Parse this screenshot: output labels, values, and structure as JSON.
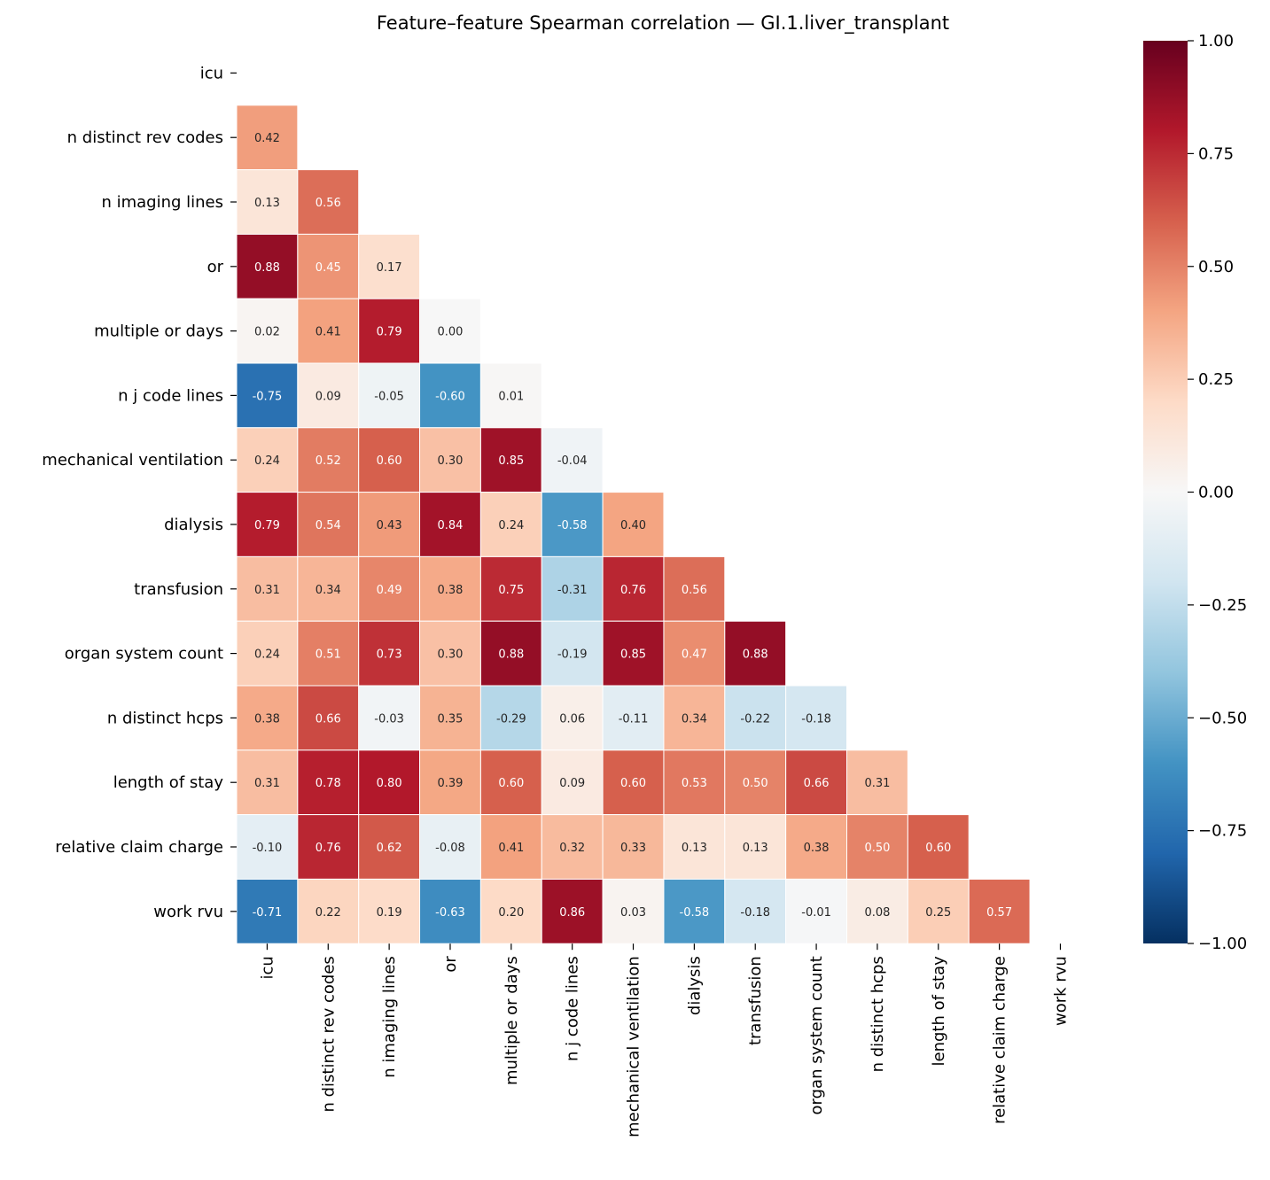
{
  "chart_data": {
    "type": "heatmap",
    "title": "Feature–feature Spearman correlation — GI.1.liver_transplant",
    "labels": [
      "icu",
      "n distinct rev codes",
      "n imaging lines",
      "or",
      "multiple or days",
      "n j code lines",
      "mechanical ventilation",
      "dialysis",
      "transfusion",
      "organ system count",
      "n distinct hcps",
      "length of stay",
      "relative claim charge",
      "work rvu"
    ],
    "mask": "upper triangle and diagonal",
    "lower_triangle": [
      [],
      [
        0.42
      ],
      [
        0.13,
        0.56
      ],
      [
        0.88,
        0.45,
        0.17
      ],
      [
        0.02,
        0.41,
        0.79,
        0.0
      ],
      [
        -0.75,
        0.09,
        -0.05,
        -0.6,
        0.01
      ],
      [
        0.24,
        0.52,
        0.6,
        0.3,
        0.85,
        -0.04
      ],
      [
        0.79,
        0.54,
        0.43,
        0.84,
        0.24,
        -0.58,
        0.4
      ],
      [
        0.31,
        0.34,
        0.49,
        0.38,
        0.75,
        -0.31,
        0.76,
        0.56
      ],
      [
        0.24,
        0.51,
        0.73,
        0.3,
        0.88,
        -0.19,
        0.85,
        0.47,
        0.88
      ],
      [
        0.38,
        0.66,
        -0.03,
        0.35,
        -0.29,
        0.06,
        -0.11,
        0.34,
        -0.22,
        -0.18
      ],
      [
        0.31,
        0.78,
        0.8,
        0.39,
        0.6,
        0.09,
        0.6,
        0.53,
        0.5,
        0.66,
        0.31
      ],
      [
        -0.1,
        0.76,
        0.62,
        -0.08,
        0.41,
        0.32,
        0.33,
        0.13,
        0.13,
        0.38,
        0.5,
        0.6
      ],
      [
        -0.71,
        0.22,
        0.19,
        -0.63,
        0.2,
        0.86,
        0.03,
        -0.58,
        -0.18,
        -0.01,
        0.08,
        0.25,
        0.57
      ]
    ],
    "colormap": "RdBu_r",
    "vmin": -1.0,
    "vmax": 1.0,
    "colorbar_ticks": [
      "1.00",
      "0.75",
      "0.50",
      "0.25",
      "0.00",
      "−0.25",
      "−0.50",
      "−0.75",
      "−1.00"
    ],
    "colorbar_tick_values": [
      1.0,
      0.75,
      0.5,
      0.25,
      0.0,
      -0.25,
      -0.5,
      -0.75,
      -1.0
    ],
    "colors": [
      "#053061",
      "#2166ac",
      "#4393c3",
      "#92c5de",
      "#d1e5f0",
      "#f7f7f7",
      "#fddbc7",
      "#f4a582",
      "#d6604d",
      "#b2182b",
      "#67001f"
    ]
  }
}
